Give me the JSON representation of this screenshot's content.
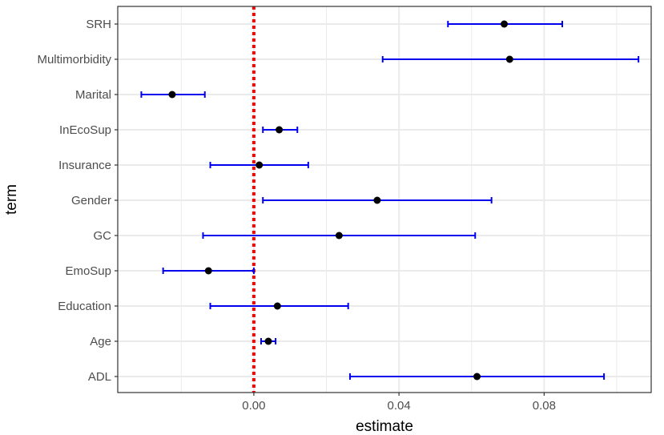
{
  "chart_data": {
    "type": "forest",
    "xlabel": "estimate",
    "ylabel": "term",
    "xlim": [
      -0.0375,
      0.1095
    ],
    "x_ticks": [
      0.0,
      0.04,
      0.08
    ],
    "x_tick_labels": [
      "0.00",
      "0.04",
      "0.08"
    ],
    "reference_line": {
      "x": 0,
      "style": "dotted",
      "color": "#ff0000"
    },
    "grid": true,
    "colors": {
      "ci": "#0000ee",
      "point": "#000000",
      "panel_border": "#333333",
      "grid": "#ebebeb"
    },
    "terms": [
      {
        "term": "SRH",
        "estimate": 0.069,
        "low": 0.0535,
        "high": 0.085
      },
      {
        "term": "Multimorbidity",
        "estimate": 0.0705,
        "low": 0.0355,
        "high": 0.106
      },
      {
        "term": "Marital",
        "estimate": -0.0225,
        "low": -0.031,
        "high": -0.0135
      },
      {
        "term": "InEcoSup",
        "estimate": 0.007,
        "low": 0.0025,
        "high": 0.012
      },
      {
        "term": "Insurance",
        "estimate": 0.0015,
        "low": -0.012,
        "high": 0.015
      },
      {
        "term": "Gender",
        "estimate": 0.034,
        "low": 0.0025,
        "high": 0.0655
      },
      {
        "term": "GC",
        "estimate": 0.0235,
        "low": -0.014,
        "high": 0.061
      },
      {
        "term": "EmoSup",
        "estimate": -0.0125,
        "low": -0.025,
        "high": 0.0
      },
      {
        "term": "Education",
        "estimate": 0.0065,
        "low": -0.012,
        "high": 0.026
      },
      {
        "term": "Age",
        "estimate": 0.004,
        "low": 0.002,
        "high": 0.006
      },
      {
        "term": "ADL",
        "estimate": 0.0615,
        "low": 0.0265,
        "high": 0.0965
      }
    ]
  }
}
